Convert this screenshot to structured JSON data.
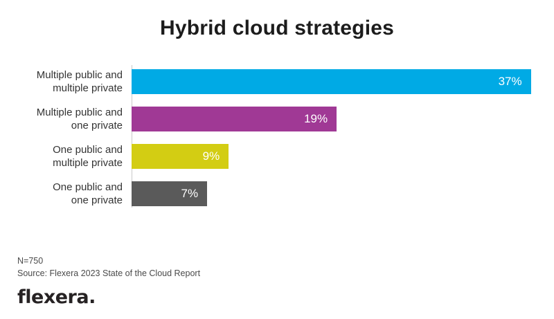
{
  "chart_data": {
    "type": "bar",
    "orientation": "horizontal",
    "title": "Hybrid cloud strategies",
    "categories": [
      "Multiple public and\nmultiple private",
      "Multiple public and\none private",
      "One public and\nmultiple private",
      "One public and\none private"
    ],
    "values": [
      37,
      19,
      9,
      7
    ],
    "value_labels": [
      "37%",
      "19%",
      "9%",
      "7%"
    ],
    "colors": [
      "#00AAE5",
      "#A03995",
      "#D3CD13",
      "#5A5A5A"
    ],
    "value_label_colors": [
      "#ffffff",
      "#ffffff",
      "#ffffff",
      "#ffffff"
    ],
    "xlim": [
      0,
      38.5
    ],
    "grid": false,
    "legend": false,
    "xlabel": "",
    "ylabel": "",
    "notes": [
      "N=750",
      "Source: Flexera 2023 State of the Cloud Report"
    ]
  },
  "branding": {
    "logo_text": "flexera."
  }
}
